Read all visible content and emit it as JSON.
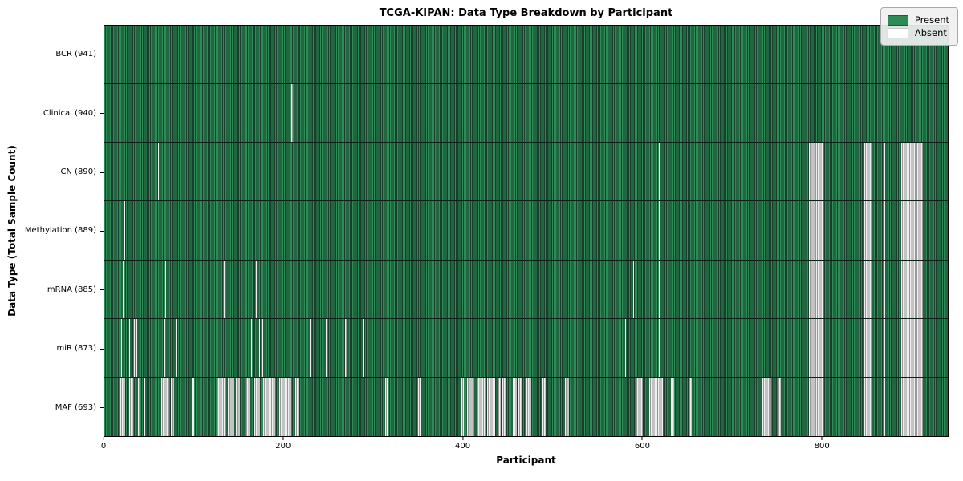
{
  "title": "TCGA-KIPAN: Data Type Breakdown by Participant",
  "xlabel": "Participant",
  "ylabel": "Data Type (Total Sample Count)",
  "legend": {
    "present_label": "Present",
    "absent_label": "Absent"
  },
  "colors": {
    "present": "#2e8b57",
    "present_edge": "#173f2b",
    "absent": "#ffffff",
    "absent_edge": "#979797",
    "legend_bg": "#f0f0f0"
  },
  "chart_data": {
    "type": "heatmap",
    "title": "TCGA-KIPAN: Data Type Breakdown by Participant",
    "xlabel": "Participant",
    "ylabel": "Data Type (Total Sample Count)",
    "legend": [
      "Present",
      "Absent"
    ],
    "legend_position": "upper right",
    "grid": false,
    "total_participants": 941,
    "x_ticks": [
      0,
      200,
      400,
      600,
      800
    ],
    "xlim": [
      0,
      941
    ],
    "rows": [
      {
        "name": "BCR",
        "label": "BCR (941)",
        "sample_count": 941,
        "absent_ranges": []
      },
      {
        "name": "Clinical",
        "label": "Clinical (940)",
        "sample_count": 940,
        "absent_ranges": [
          [
            209,
            209
          ]
        ]
      },
      {
        "name": "CN",
        "label": "CN (890)",
        "sample_count": 890,
        "absent_ranges": [
          [
            60,
            60
          ],
          [
            619,
            619
          ],
          [
            786,
            800
          ],
          [
            848,
            856
          ],
          [
            870,
            870
          ],
          [
            889,
            912
          ]
        ]
      },
      {
        "name": "Methylation",
        "label": "Methylation (889)",
        "sample_count": 889,
        "absent_ranges": [
          [
            22,
            22
          ],
          [
            307,
            307
          ],
          [
            619,
            619
          ],
          [
            786,
            800
          ],
          [
            848,
            856
          ],
          [
            870,
            870
          ],
          [
            889,
            912
          ]
        ]
      },
      {
        "name": "mRNA",
        "label": "mRNA (885)",
        "sample_count": 885,
        "absent_ranges": [
          [
            21,
            21
          ],
          [
            68,
            68
          ],
          [
            133,
            133
          ],
          [
            140,
            140
          ],
          [
            169,
            169
          ],
          [
            590,
            590
          ],
          [
            619,
            619
          ],
          [
            786,
            800
          ],
          [
            848,
            856
          ],
          [
            870,
            870
          ],
          [
            889,
            912
          ]
        ]
      },
      {
        "name": "miR",
        "label": "miR (873)",
        "sample_count": 873,
        "absent_ranges": [
          [
            19,
            19
          ],
          [
            28,
            28
          ],
          [
            30,
            30
          ],
          [
            33,
            33
          ],
          [
            36,
            36
          ],
          [
            66,
            66
          ],
          [
            80,
            80
          ],
          [
            164,
            164
          ],
          [
            173,
            173
          ],
          [
            176,
            176
          ],
          [
            202,
            202
          ],
          [
            229,
            229
          ],
          [
            247,
            247
          ],
          [
            269,
            269
          ],
          [
            288,
            288
          ],
          [
            307,
            307
          ],
          [
            579,
            579
          ],
          [
            581,
            581
          ],
          [
            619,
            619
          ],
          [
            786,
            800
          ],
          [
            848,
            856
          ],
          [
            870,
            870
          ],
          [
            889,
            912
          ]
        ]
      },
      {
        "name": "MAF",
        "label": "MAF (693)",
        "sample_count": 693,
        "absent_ranges": [
          [
            18,
            22
          ],
          [
            28,
            31
          ],
          [
            38,
            39
          ],
          [
            45,
            45
          ],
          [
            64,
            71
          ],
          [
            74,
            77
          ],
          [
            98,
            99
          ],
          [
            125,
            134
          ],
          [
            138,
            143
          ],
          [
            147,
            150
          ],
          [
            158,
            162
          ],
          [
            167,
            173
          ],
          [
            177,
            190
          ],
          [
            195,
            208
          ],
          [
            213,
            217
          ],
          [
            313,
            316
          ],
          [
            350,
            352
          ],
          [
            398,
            400
          ],
          [
            405,
            412
          ],
          [
            415,
            424
          ],
          [
            427,
            435
          ],
          [
            439,
            441
          ],
          [
            444,
            447
          ],
          [
            456,
            459
          ],
          [
            462,
            465
          ],
          [
            471,
            475
          ],
          [
            489,
            491
          ],
          [
            514,
            517
          ],
          [
            593,
            600
          ],
          [
            608,
            622
          ],
          [
            632,
            635
          ],
          [
            652,
            654
          ],
          [
            734,
            743
          ],
          [
            751,
            754
          ],
          [
            786,
            800
          ],
          [
            848,
            856
          ],
          [
            870,
            870
          ],
          [
            889,
            912
          ]
        ]
      }
    ]
  }
}
